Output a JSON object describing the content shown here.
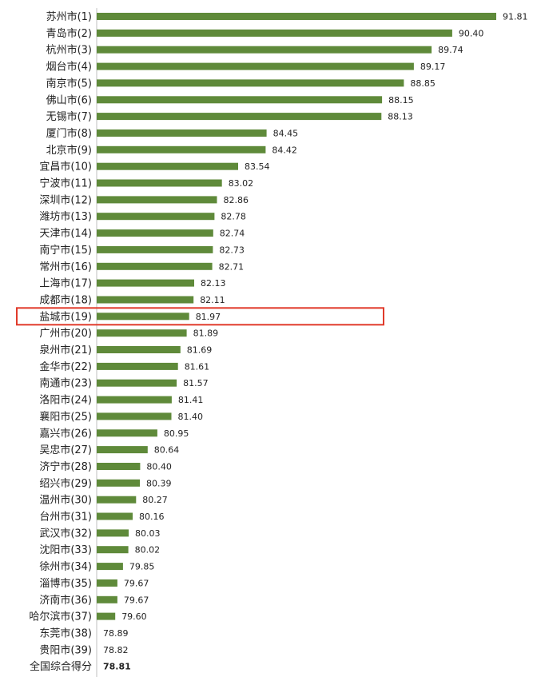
{
  "chart_data": {
    "type": "bar",
    "orientation": "horizontal",
    "categories": [
      "苏州市(1)",
      "青岛市(2)",
      "杭州市(3)",
      "烟台市(4)",
      "南京市(5)",
      "佛山市(6)",
      "无锡市(7)",
      "厦门市(8)",
      "北京市(9)",
      "宜昌市(10)",
      "宁波市(11)",
      "深圳市(12)",
      "潍坊市(13)",
      "天津市(14)",
      "南宁市(15)",
      "常州市(16)",
      "上海市(17)",
      "成都市(18)",
      "盐城市(19)",
      "广州市(20)",
      "泉州市(21)",
      "金华市(22)",
      "南通市(23)",
      "洛阳市(24)",
      "襄阳市(25)",
      "嘉兴市(26)",
      "吴忠市(27)",
      "济宁市(28)",
      "绍兴市(29)",
      "温州市(30)",
      "台州市(31)",
      "武汉市(32)",
      "沈阳市(33)",
      "徐州市(34)",
      "淄博市(35)",
      "济南市(36)",
      "哈尔滨市(37)",
      "东莞市(38)",
      "贵阳市(39)",
      "全国综合得分"
    ],
    "values": [
      91.81,
      90.4,
      89.74,
      89.17,
      88.85,
      88.15,
      88.13,
      84.45,
      84.42,
      83.54,
      83.02,
      82.86,
      82.78,
      82.74,
      82.73,
      82.71,
      82.13,
      82.11,
      81.97,
      81.89,
      81.69,
      81.61,
      81.57,
      81.41,
      81.4,
      80.95,
      80.64,
      80.4,
      80.39,
      80.27,
      80.16,
      80.03,
      80.02,
      79.85,
      79.67,
      79.67,
      79.6,
      78.89,
      78.82,
      78.81
    ],
    "value_labels": [
      "91.81",
      "90.40",
      "89.74",
      "89.17",
      "88.85",
      "88.15",
      "88.13",
      "84.45",
      "84.42",
      "83.54",
      "83.02",
      "82.86",
      "82.78",
      "82.74",
      "82.73",
      "82.71",
      "82.13",
      "82.11",
      "81.97",
      "81.89",
      "81.69",
      "81.61",
      "81.57",
      "81.41",
      "81.40",
      "80.95",
      "80.64",
      "80.40",
      "80.39",
      "80.27",
      "80.16",
      "80.03",
      "80.02",
      "79.85",
      "79.67",
      "79.67",
      "79.60",
      "78.89",
      "78.82",
      "78.81"
    ],
    "highlighted_category": "盐城市(19)",
    "emphasized_category": "全国综合得分",
    "bar_color": "#5f8a3a",
    "emphasized_bar_color": "#a01818",
    "highlight_box_color": "#e03a2a",
    "title": "",
    "xlabel": "",
    "ylabel": "",
    "grid": false,
    "legend": "none"
  }
}
